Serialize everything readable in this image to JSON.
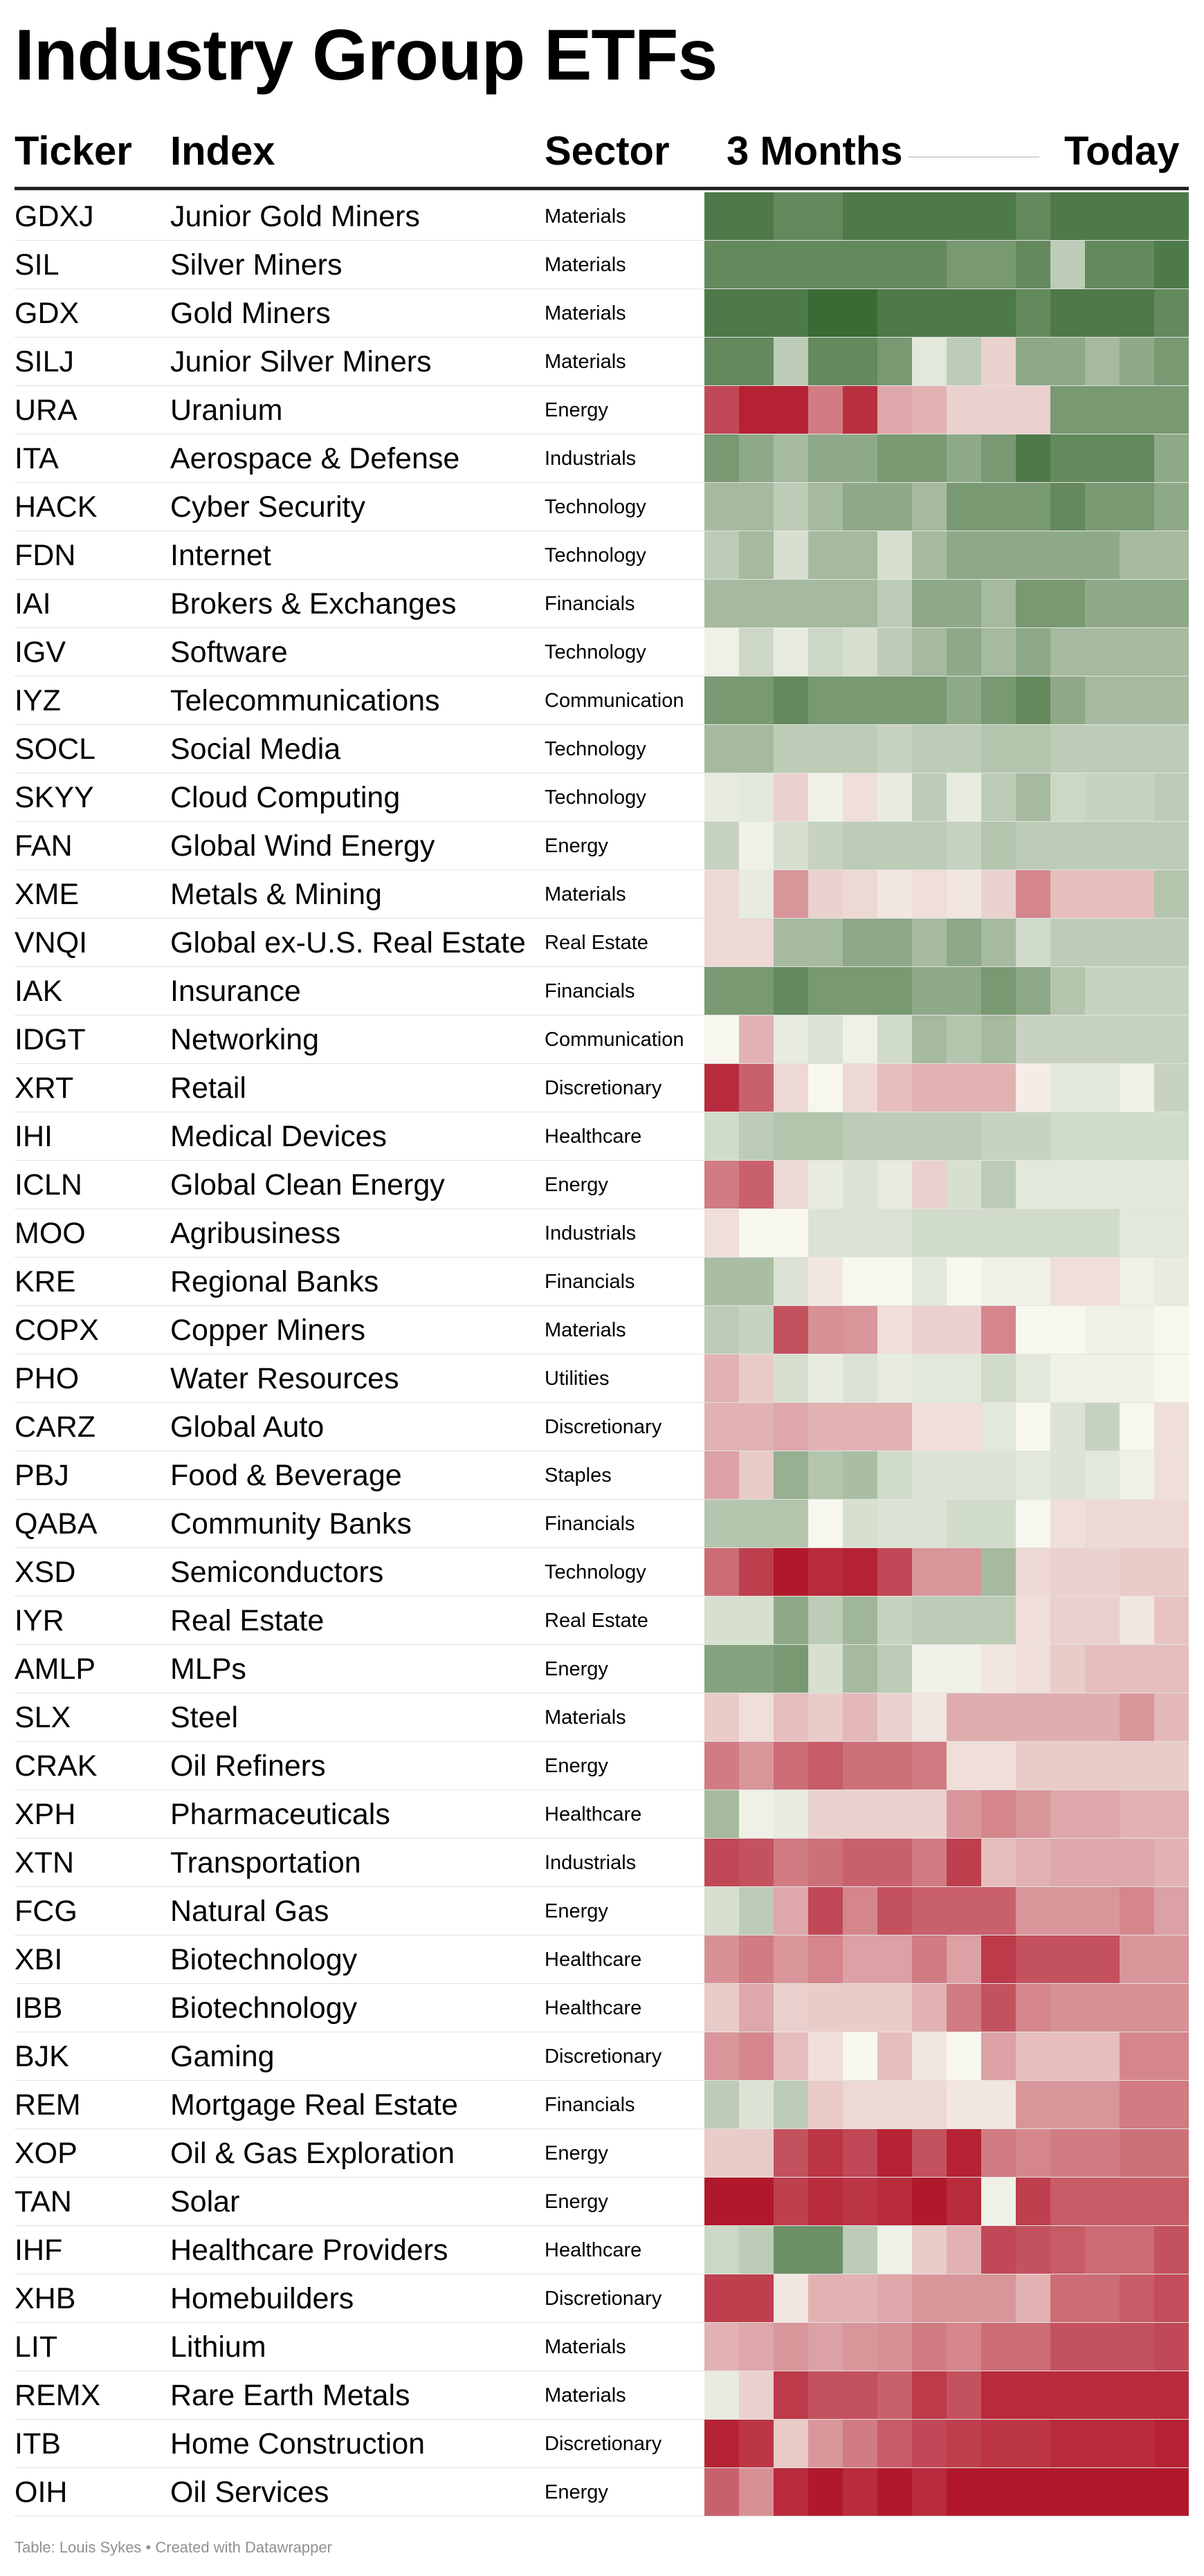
{
  "page": {
    "title": "Industry Group ETFs",
    "footer": "Table: Louis Sykes • Created with Datawrapper"
  },
  "table": {
    "columns": {
      "ticker": "Ticker",
      "index": "Index",
      "sector": "Sector",
      "heat_start": "3 Months",
      "heat_end": "Today"
    },
    "rows": [
      {
        "ticker": "GDXJ",
        "index": "Junior Gold Miners",
        "sector": "Materials"
      },
      {
        "ticker": "SIL",
        "index": "Silver Miners",
        "sector": "Materials"
      },
      {
        "ticker": "GDX",
        "index": "Gold Miners",
        "sector": "Materials"
      },
      {
        "ticker": "SILJ",
        "index": "Junior Silver Miners",
        "sector": "Materials"
      },
      {
        "ticker": "URA",
        "index": "Uranium",
        "sector": "Energy"
      },
      {
        "ticker": "ITA",
        "index": "Aerospace & Defense",
        "sector": "Industrials"
      },
      {
        "ticker": "HACK",
        "index": "Cyber Security",
        "sector": "Technology"
      },
      {
        "ticker": "FDN",
        "index": "Internet",
        "sector": "Technology"
      },
      {
        "ticker": "IAI",
        "index": "Brokers & Exchanges",
        "sector": "Financials"
      },
      {
        "ticker": "IGV",
        "index": "Software",
        "sector": "Technology"
      },
      {
        "ticker": "IYZ",
        "index": "Telecommunications",
        "sector": "Communication"
      },
      {
        "ticker": "SOCL",
        "index": "Social Media",
        "sector": "Technology"
      },
      {
        "ticker": "SKYY",
        "index": "Cloud Computing",
        "sector": "Technology"
      },
      {
        "ticker": "FAN",
        "index": "Global Wind Energy",
        "sector": "Energy"
      },
      {
        "ticker": "XME",
        "index": "Metals & Mining",
        "sector": "Materials"
      },
      {
        "ticker": "VNQI",
        "index": "Global ex-U.S. Real Estate",
        "sector": "Real Estate"
      },
      {
        "ticker": "IAK",
        "index": "Insurance",
        "sector": "Financials"
      },
      {
        "ticker": "IDGT",
        "index": "Networking",
        "sector": "Communication"
      },
      {
        "ticker": "XRT",
        "index": "Retail",
        "sector": "Discretionary"
      },
      {
        "ticker": "IHI",
        "index": "Medical Devices",
        "sector": "Healthcare"
      },
      {
        "ticker": "ICLN",
        "index": "Global Clean Energy",
        "sector": "Energy"
      },
      {
        "ticker": "MOO",
        "index": "Agribusiness",
        "sector": "Industrials"
      },
      {
        "ticker": "KRE",
        "index": "Regional Banks",
        "sector": "Financials"
      },
      {
        "ticker": "COPX",
        "index": "Copper Miners",
        "sector": "Materials"
      },
      {
        "ticker": "PHO",
        "index": "Water Resources",
        "sector": "Utilities"
      },
      {
        "ticker": "CARZ",
        "index": "Global Auto",
        "sector": "Discretionary"
      },
      {
        "ticker": "PBJ",
        "index": "Food & Beverage",
        "sector": "Staples"
      },
      {
        "ticker": "QABA",
        "index": "Community Banks",
        "sector": "Financials"
      },
      {
        "ticker": "XSD",
        "index": "Semiconductors",
        "sector": "Technology"
      },
      {
        "ticker": "IYR",
        "index": "Real Estate",
        "sector": "Real Estate"
      },
      {
        "ticker": "AMLP",
        "index": "MLPs",
        "sector": "Energy"
      },
      {
        "ticker": "SLX",
        "index": "Steel",
        "sector": "Materials"
      },
      {
        "ticker": "CRAK",
        "index": "Oil Refiners",
        "sector": "Energy"
      },
      {
        "ticker": "XPH",
        "index": "Pharmaceuticals",
        "sector": "Healthcare"
      },
      {
        "ticker": "XTN",
        "index": "Transportation",
        "sector": "Industrials"
      },
      {
        "ticker": "FCG",
        "index": "Natural Gas",
        "sector": "Energy"
      },
      {
        "ticker": "XBI",
        "index": "Biotechnology",
        "sector": "Healthcare"
      },
      {
        "ticker": "IBB",
        "index": "Biotechnology",
        "sector": "Healthcare"
      },
      {
        "ticker": "BJK",
        "index": "Gaming",
        "sector": "Discretionary"
      },
      {
        "ticker": "REM",
        "index": "Mortgage Real Estate",
        "sector": "Financials"
      },
      {
        "ticker": "XOP",
        "index": "Oil & Gas Exploration",
        "sector": "Energy"
      },
      {
        "ticker": "TAN",
        "index": "Solar",
        "sector": "Energy"
      },
      {
        "ticker": "IHF",
        "index": "Healthcare Providers",
        "sector": "Healthcare"
      },
      {
        "ticker": "XHB",
        "index": "Homebuilders",
        "sector": "Discretionary"
      },
      {
        "ticker": "LIT",
        "index": "Lithium",
        "sector": "Materials"
      },
      {
        "ticker": "REMX",
        "index": "Rare Earth Metals",
        "sector": "Materials"
      },
      {
        "ticker": "ITB",
        "index": "Home Construction",
        "sector": "Discretionary"
      },
      {
        "ticker": "OIH",
        "index": "Oil Services",
        "sector": "Energy"
      }
    ]
  },
  "chart_data": {
    "type": "heatmap",
    "x_label_start": "3 Months",
    "x_label_end": "Today",
    "color_scale": {
      "min_color": "#b2182b",
      "mid_color": "#f7f7ef",
      "max_color": "#3a6b35",
      "range": [
        -4,
        4
      ]
    },
    "rows": [
      "GDXJ",
      "SIL",
      "GDX",
      "SILJ",
      "URA",
      "ITA",
      "HACK",
      "FDN",
      "IAI",
      "IGV",
      "IYZ",
      "SOCL",
      "SKYY",
      "FAN",
      "XME",
      "VNQI",
      "IAK",
      "IDGT",
      "XRT",
      "IHI",
      "ICLN",
      "MOO",
      "KRE",
      "COPX",
      "PHO",
      "CARZ",
      "PBJ",
      "QABA",
      "XSD",
      "IYR",
      "AMLP",
      "SLX",
      "CRAK",
      "XPH",
      "XTN",
      "FCG",
      "XBI",
      "IBB",
      "BJK",
      "REM",
      "XOP",
      "TAN",
      "IHF",
      "XHB",
      "LIT",
      "REMX",
      "ITB",
      "OIH"
    ],
    "values": [
      [
        3.5,
        3.5,
        3.0,
        3.0,
        3.5,
        3.5,
        3.5,
        3.5,
        3.5,
        3.0,
        3.5,
        3.5,
        3.5,
        3.5
      ],
      [
        3.0,
        3.0,
        3.0,
        3.0,
        3.0,
        3.0,
        3.0,
        2.5,
        2.5,
        3.0,
        1.0,
        3.0,
        3.0,
        3.5
      ],
      [
        3.5,
        3.5,
        3.5,
        4.0,
        4.0,
        3.5,
        3.5,
        3.5,
        3.5,
        3.0,
        3.5,
        3.5,
        3.5,
        3.0
      ],
      [
        3.0,
        3.0,
        1.0,
        3.0,
        3.0,
        2.5,
        0.3,
        1.0,
        -0.5,
        2.0,
        2.0,
        1.5,
        2.0,
        2.5
      ],
      [
        -3.0,
        -3.8,
        -3.8,
        -2.0,
        -3.5,
        -1.2,
        -1.0,
        -0.5,
        -0.5,
        -0.5,
        2.5,
        2.5,
        2.5,
        2.5
      ],
      [
        2.5,
        2.0,
        1.5,
        2.0,
        2.0,
        2.5,
        2.5,
        2.0,
        2.5,
        3.5,
        3.0,
        3.0,
        3.0,
        2.0
      ],
      [
        1.5,
        1.5,
        1.0,
        1.5,
        2.0,
        2.0,
        1.5,
        2.5,
        2.5,
        2.5,
        3.0,
        2.5,
        2.5,
        2.0
      ],
      [
        1.0,
        1.5,
        0.5,
        1.5,
        1.5,
        0.5,
        1.5,
        2.0,
        2.0,
        2.0,
        2.0,
        2.0,
        1.5,
        1.5
      ],
      [
        1.5,
        1.5,
        1.5,
        1.5,
        1.5,
        1.0,
        2.0,
        2.0,
        1.5,
        2.5,
        2.5,
        2.0,
        2.0,
        2.0
      ],
      [
        0.1,
        0.7,
        0.2,
        0.7,
        0.5,
        1.0,
        1.5,
        2.0,
        1.5,
        2.0,
        1.5,
        1.5,
        1.5,
        1.5
      ],
      [
        2.5,
        2.5,
        3.0,
        2.5,
        2.5,
        2.5,
        2.5,
        2.0,
        2.5,
        3.0,
        2.0,
        1.5,
        1.5,
        1.5
      ],
      [
        1.5,
        1.5,
        1.0,
        1.0,
        1.0,
        0.8,
        1.0,
        1.0,
        1.2,
        1.2,
        1.0,
        1.0,
        1.0,
        1.0
      ],
      [
        0.2,
        0.3,
        -0.5,
        0.1,
        -0.3,
        0.2,
        1.0,
        0.2,
        1.0,
        1.5,
        0.7,
        0.8,
        0.8,
        1.0
      ],
      [
        0.8,
        0.1,
        0.5,
        0.8,
        1.0,
        1.0,
        1.0,
        0.8,
        1.2,
        1.0,
        1.0,
        1.0,
        1.0,
        1.0
      ],
      [
        -0.4,
        0.2,
        -1.5,
        -0.5,
        -0.4,
        -0.2,
        -0.3,
        -0.2,
        -0.5,
        -1.8,
        -0.8,
        -0.8,
        -0.8,
        1.2
      ],
      [
        -0.4,
        -0.4,
        1.5,
        1.5,
        2.0,
        2.0,
        1.5,
        2.0,
        1.5,
        0.6,
        1.0,
        1.0,
        1.0,
        1.0
      ],
      [
        2.5,
        2.5,
        3.0,
        2.5,
        2.5,
        2.5,
        2.0,
        2.0,
        2.5,
        2.0,
        1.2,
        0.8,
        0.8,
        0.8
      ],
      [
        0.0,
        -1.0,
        0.2,
        0.4,
        0.1,
        0.6,
        1.5,
        1.2,
        1.5,
        0.8,
        0.8,
        0.8,
        0.8,
        0.8
      ],
      [
        -3.6,
        -2.5,
        -0.4,
        0.0,
        -0.4,
        -0.8,
        -1.0,
        -1.0,
        -1.0,
        -0.1,
        0.3,
        0.3,
        0.1,
        0.8
      ],
      [
        0.6,
        1.0,
        1.2,
        1.2,
        1.0,
        1.0,
        1.0,
        1.0,
        0.8,
        0.8,
        0.6,
        0.6,
        0.6,
        0.6
      ],
      [
        -2.0,
        -2.5,
        -0.4,
        0.2,
        0.4,
        0.2,
        -0.5,
        0.5,
        1.0,
        0.3,
        0.3,
        0.3,
        0.3,
        0.3
      ],
      [
        -0.3,
        0.0,
        0.0,
        0.4,
        0.4,
        0.4,
        0.6,
        0.6,
        0.6,
        0.6,
        0.6,
        0.6,
        0.3,
        0.3
      ],
      [
        1.4,
        1.4,
        0.4,
        -0.2,
        0.0,
        0.0,
        0.3,
        0.0,
        0.1,
        0.1,
        -0.3,
        -0.3,
        0.1,
        0.2
      ],
      [
        1.0,
        0.8,
        -2.8,
        -1.6,
        -1.5,
        -0.3,
        -0.5,
        -0.5,
        -1.8,
        0.0,
        0.0,
        0.1,
        0.1,
        0.0
      ],
      [
        -1.0,
        -0.6,
        0.5,
        0.2,
        0.4,
        0.2,
        0.3,
        0.3,
        0.6,
        0.3,
        0.1,
        0.1,
        0.1,
        0.0
      ],
      [
        -1.0,
        -1.0,
        -1.2,
        -1.0,
        -1.0,
        -1.0,
        -0.3,
        -0.3,
        0.3,
        0.0,
        0.4,
        0.8,
        0.0,
        -0.3
      ],
      [
        -1.3,
        -0.6,
        1.8,
        1.2,
        1.4,
        0.6,
        0.4,
        0.4,
        0.4,
        0.3,
        0.4,
        0.3,
        0.1,
        -0.3
      ],
      [
        1.2,
        1.2,
        1.2,
        0.0,
        0.5,
        0.4,
        0.4,
        0.6,
        0.6,
        0.0,
        -0.3,
        -0.4,
        -0.4,
        -0.4
      ],
      [
        -2.3,
        -3.2,
        -4.0,
        -3.6,
        -3.8,
        -3.0,
        -1.5,
        -1.5,
        1.5,
        -0.4,
        -0.5,
        -0.5,
        -0.6,
        -0.6
      ],
      [
        0.5,
        0.5,
        2.0,
        1.0,
        1.6,
        0.8,
        1.0,
        1.0,
        1.0,
        -0.3,
        -0.5,
        -0.5,
        -0.2,
        -0.7
      ],
      [
        2.2,
        2.2,
        2.5,
        0.5,
        1.5,
        1.0,
        0.1,
        0.1,
        -0.2,
        -0.3,
        -0.6,
        -0.8,
        -0.8,
        -0.8
      ],
      [
        -0.6,
        -0.3,
        -0.8,
        -0.6,
        -0.9,
        -0.5,
        -0.2,
        -1.1,
        -1.1,
        -1.1,
        -1.1,
        -1.1,
        -1.5,
        -0.9
      ],
      [
        -2.0,
        -1.5,
        -2.3,
        -2.6,
        -2.2,
        -2.2,
        -2.0,
        -0.3,
        -0.3,
        -0.6,
        -0.6,
        -0.6,
        -0.6,
        -0.6
      ],
      [
        1.5,
        0.1,
        0.2,
        -0.5,
        -0.5,
        -0.5,
        -0.5,
        -1.5,
        -1.8,
        -1.5,
        -1.2,
        -1.2,
        -1.0,
        -1.0
      ],
      [
        -3.0,
        -2.8,
        -2.0,
        -2.2,
        -2.5,
        -2.5,
        -2.0,
        -3.2,
        -0.8,
        -1.0,
        -1.2,
        -1.2,
        -1.2,
        -1.0
      ],
      [
        0.5,
        1.0,
        -1.2,
        -3.0,
        -1.8,
        -2.8,
        -2.5,
        -2.5,
        -2.5,
        -1.5,
        -1.5,
        -1.5,
        -1.8,
        -1.3
      ],
      [
        -1.6,
        -2.0,
        -1.5,
        -1.8,
        -1.3,
        -1.3,
        -2.0,
        -1.3,
        -3.3,
        -2.8,
        -2.8,
        -2.8,
        -1.5,
        -1.5
      ],
      [
        -0.6,
        -1.2,
        -0.5,
        -0.6,
        -0.6,
        -0.6,
        -1.0,
        -2.0,
        -2.8,
        -1.8,
        -1.6,
        -1.6,
        -1.6,
        -1.6
      ],
      [
        -1.5,
        -1.8,
        -0.8,
        -0.3,
        0.0,
        -0.8,
        -0.2,
        0.0,
        -1.3,
        -0.8,
        -0.8,
        -0.8,
        -1.8,
        -1.8
      ],
      [
        1.0,
        0.4,
        1.0,
        -0.6,
        -0.4,
        -0.4,
        -0.4,
        -0.2,
        -0.2,
        -1.5,
        -1.5,
        -1.5,
        -2.0,
        -2.0
      ],
      [
        -0.6,
        -0.6,
        -2.8,
        -3.4,
        -3.0,
        -3.8,
        -2.8,
        -3.8,
        -2.0,
        -1.8,
        -2.0,
        -2.0,
        -2.2,
        -2.2
      ],
      [
        -4.0,
        -4.0,
        -3.2,
        -3.6,
        -3.4,
        -3.6,
        -4.0,
        -3.6,
        0.1,
        -3.2,
        -2.6,
        -2.6,
        -2.6,
        -2.6
      ],
      [
        0.7,
        1.0,
        2.8,
        2.8,
        1.0,
        0.1,
        -0.6,
        -1.0,
        -3.0,
        -2.8,
        -2.6,
        -2.3,
        -2.3,
        -2.8
      ],
      [
        -3.2,
        -3.2,
        -0.2,
        -1.0,
        -1.0,
        -1.2,
        -1.5,
        -1.5,
        -1.5,
        -1.0,
        -2.3,
        -2.3,
        -2.6,
        -2.9
      ],
      [
        -1.0,
        -1.2,
        -1.5,
        -1.3,
        -1.5,
        -1.6,
        -2.0,
        -1.8,
        -2.3,
        -2.3,
        -2.8,
        -2.8,
        -2.8,
        -3.0
      ],
      [
        0.2,
        -0.5,
        -3.3,
        -2.8,
        -2.8,
        -2.5,
        -3.3,
        -2.8,
        -3.6,
        -3.6,
        -3.6,
        -3.6,
        -3.6,
        -3.6
      ],
      [
        -3.8,
        -3.4,
        -0.6,
        -1.5,
        -2.0,
        -2.6,
        -3.0,
        -3.2,
        -3.4,
        -3.4,
        -3.6,
        -3.6,
        -3.6,
        -3.8
      ],
      [
        -2.5,
        -1.6,
        -3.6,
        -4.0,
        -3.6,
        -4.0,
        -3.6,
        -4.0,
        -4.0,
        -4.0,
        -4.0,
        -4.0,
        -4.0,
        -4.0
      ]
    ]
  }
}
